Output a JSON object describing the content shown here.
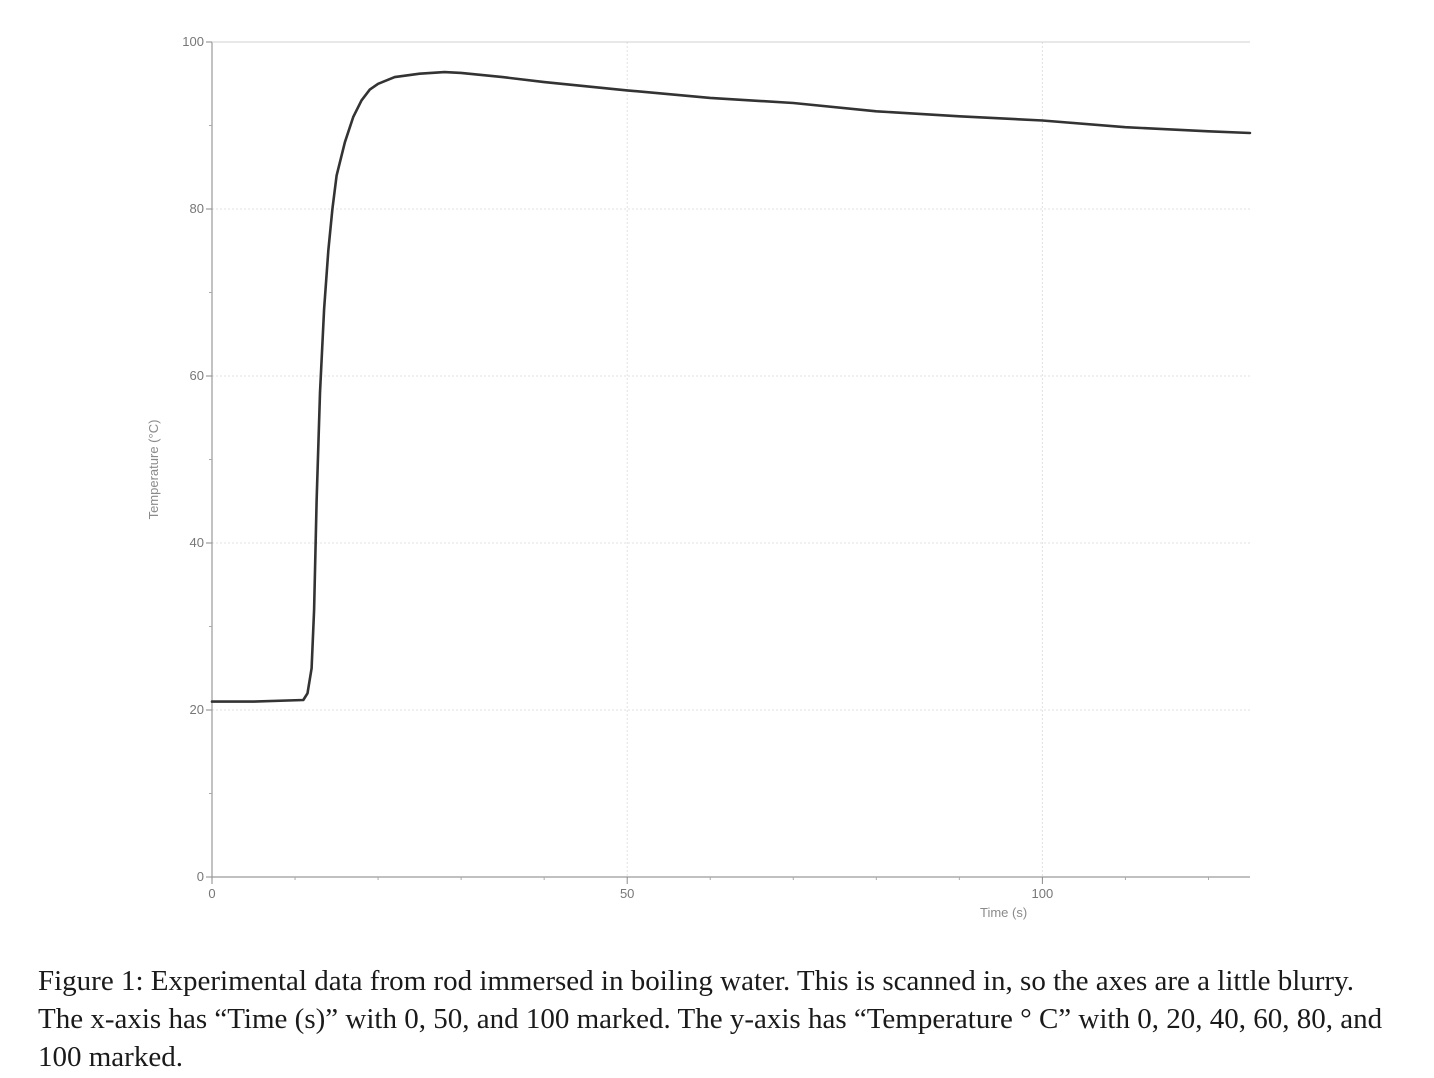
{
  "chart_data": {
    "type": "line",
    "xlabel": "Time (s)",
    "ylabel": "Temperature (°C)",
    "xlim": [
      0,
      125
    ],
    "ylim": [
      0,
      100
    ],
    "x_ticks": [
      0,
      50,
      100
    ],
    "y_ticks": [
      0,
      20,
      40,
      60,
      80,
      100
    ],
    "grid": true,
    "series": [
      {
        "color": "#333333",
        "x": [
          0,
          5,
          11,
          11.5,
          12,
          12.3,
          12.6,
          13,
          13.5,
          14,
          14.5,
          15,
          16,
          17,
          18,
          19,
          20,
          22,
          25,
          28,
          30,
          35,
          40,
          50,
          60,
          70,
          80,
          90,
          100,
          110,
          120,
          125
        ],
        "y": [
          21,
          21,
          21.2,
          22,
          25,
          32,
          45,
          58,
          68,
          75,
          80,
          84,
          88,
          91,
          93,
          94.3,
          95,
          95.8,
          96.2,
          96.4,
          96.3,
          95.8,
          95.2,
          94.2,
          93.3,
          92.7,
          91.7,
          91.1,
          90.6,
          89.8,
          89.3,
          89.1
        ]
      }
    ]
  },
  "caption": "Figure 1: Experimental data from rod immersed in boiling water. This is scanned in, so the axes are a little blurry. The x-axis has “Time (s)” with 0, 50, and 100 marked. The y-axis has “Temperature ° C” with 0, 20, 40, 60, 80, and 100 marked."
}
